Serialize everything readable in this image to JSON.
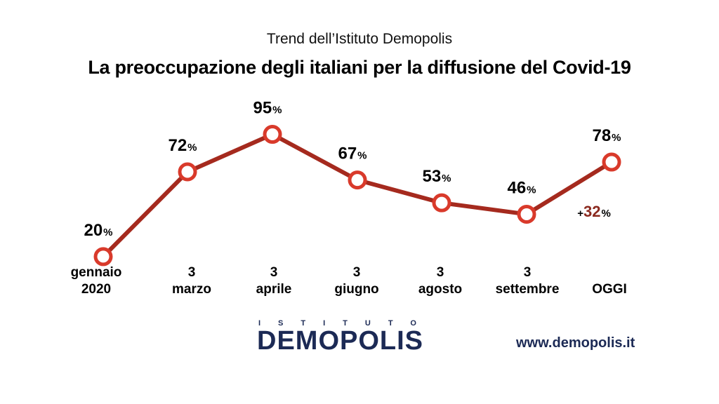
{
  "header": {
    "subtitle": "Trend dell’Istituto Demopolis",
    "title": "La preoccupazione degli italiani per la diffusione del Covid-19"
  },
  "chart_data": {
    "type": "line",
    "categories": [
      [
        "gennaio",
        "2020"
      ],
      [
        "3",
        "marzo"
      ],
      [
        "3",
        "aprile"
      ],
      [
        "3",
        "giugno"
      ],
      [
        "3",
        "agosto"
      ],
      [
        "3",
        "settembre"
      ],
      [
        "OGGI"
      ]
    ],
    "values": [
      20,
      72,
      95,
      67,
      53,
      46,
      78
    ],
    "value_suffix": "%",
    "annotation": {
      "prefix": "+",
      "value": "32",
      "suffix": "%"
    },
    "line_color": "#a52a1e",
    "marker_color": "#d93a2b",
    "annotation_color": "#8b2a1f",
    "grid": false,
    "legend": "none"
  },
  "footer": {
    "logo_top": "ISTITUTO",
    "logo_main": "DEMOPOLIS",
    "website": "www.demopolis.it"
  },
  "colors": {
    "brand": "#1c2a55"
  }
}
